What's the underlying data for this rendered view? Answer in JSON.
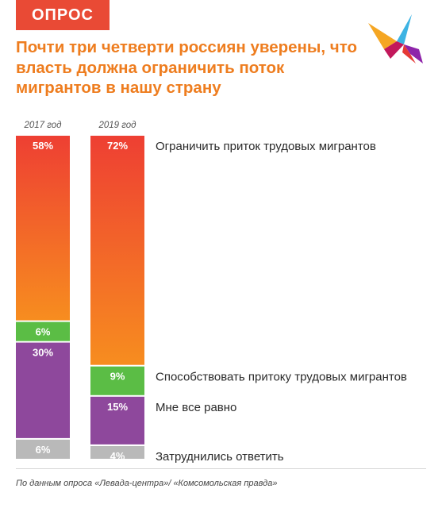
{
  "header": {
    "tag": "ОПРОС",
    "title": "Почти три четверти россиян уверены, что власть должна ограничить поток мигрантов в нашу страну"
  },
  "colors": {
    "accent": "#e94a35",
    "title": "#ee7d1f",
    "restrict_top": "#ee3f33",
    "restrict_bottom": "#f78d1f",
    "promote": "#5bbd45",
    "indifferent": "#8e489c",
    "undecided": "#b9b9b9"
  },
  "logo": {
    "icon": "swallow-bird-logo"
  },
  "chart_data": {
    "type": "bar",
    "stacked": true,
    "orientation": "vertical",
    "categories": [
      "2017 год",
      "2019 год"
    ],
    "series": [
      {
        "name": "Ограничить приток трудовых мигрантов",
        "values": [
          58,
          72
        ],
        "labels": [
          "58%",
          "72%"
        ],
        "color": "#ee3f33"
      },
      {
        "name": "Способствовать притоку трудовых мигрантов",
        "values": [
          6,
          9
        ],
        "labels": [
          "6%",
          "9%"
        ],
        "color": "#5bbd45"
      },
      {
        "name": "Мне все равно",
        "values": [
          30,
          15
        ],
        "labels": [
          "30%",
          "15%"
        ],
        "color": "#8e489c"
      },
      {
        "name": "Затруднились ответить",
        "values": [
          6,
          4
        ],
        "labels": [
          "6%",
          "4%"
        ],
        "color": "#b9b9b9"
      }
    ],
    "ylim": [
      0,
      100
    ],
    "legend": "right",
    "grid": false
  },
  "footer": {
    "source": "По данным опроса «Левада-центра»/ «Комсомольская правда»"
  }
}
